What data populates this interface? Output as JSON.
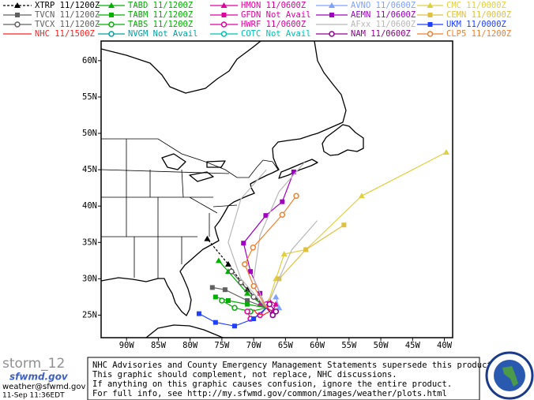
{
  "legend": [
    {
      "model": "XTRP",
      "run": "11/1200Z",
      "color": "#000000",
      "marker": "triangle",
      "line_style": "dashed",
      "tracks": [
        {
          "lon": [
            -68,
            -71,
            -74,
            -77.3
          ],
          "lat": [
            26,
            28.5,
            32,
            35.5
          ]
        }
      ]
    },
    {
      "model": "TABD",
      "run": "11/1200Z",
      "color": "#00b000",
      "marker": "triangle",
      "tracks": [
        {
          "lon": [
            -68,
            -71,
            -74,
            -75.5
          ],
          "lat": [
            26,
            28,
            31,
            32.5
          ]
        }
      ]
    },
    {
      "model": "HMON",
      "run": "11/0600Z",
      "color": "#e000a0",
      "marker": "triangle",
      "tracks": [
        {
          "lon": [
            -68,
            -67,
            -66.5,
            -67.5,
            -69
          ],
          "lat": [
            26,
            25.5,
            26.5,
            27,
            26.5
          ]
        }
      ]
    },
    {
      "model": "AVNO",
      "run": "11/0600Z",
      "color": "#80a0ff",
      "marker": "triangle",
      "tracks": [
        {
          "lon": [
            -68,
            -67,
            -66,
            -66.5
          ],
          "lat": [
            26,
            25,
            26,
            27.5
          ]
        }
      ]
    },
    {
      "model": "CMC",
      "run": "11/0000Z",
      "color": "#e0d040",
      "marker": "triangle",
      "tracks": [
        {
          "lon": [
            -68,
            -66.5,
            -65.2,
            -61.8,
            -53,
            -39.7
          ],
          "lat": [
            26,
            30,
            33.4,
            34,
            41.4,
            47.4
          ]
        }
      ]
    },
    {
      "model": "TVCN",
      "run": "11/1200Z",
      "color": "#606060",
      "marker": "square",
      "tracks": [
        {
          "lon": [
            -68,
            -71,
            -74.5,
            -76.5
          ],
          "lat": [
            26,
            27,
            28.5,
            28.8
          ]
        }
      ]
    },
    {
      "model": "TABM",
      "run": "11/1200Z",
      "color": "#00b000",
      "marker": "square",
      "tracks": [
        {
          "lon": [
            -68,
            -71,
            -74,
            -76
          ],
          "lat": [
            26,
            26.5,
            27,
            27.5
          ]
        }
      ]
    },
    {
      "model": "GFDN",
      "run": "Not Avail",
      "color": "#e000a0",
      "marker": "square",
      "tracks": []
    },
    {
      "model": "AEMN",
      "run": "11/0600Z",
      "color": "#a000c0",
      "marker": "square",
      "tracks": [
        {
          "lon": [
            -68,
            -69,
            -70.5,
            -71.6,
            -68.1,
            -65.5,
            -63.7
          ],
          "lat": [
            26,
            28,
            31,
            34.9,
            38.7,
            40.6,
            44.7
          ]
        }
      ]
    },
    {
      "model": "CEMN",
      "run": "11/0000Z",
      "color": "#e0c040",
      "marker": "square",
      "tracks": [
        {
          "lon": [
            -68,
            -66,
            -61.8,
            -55.8
          ],
          "lat": [
            26,
            30,
            34,
            37.4
          ]
        }
      ]
    },
    {
      "model": "TVCX",
      "run": "11/1200Z",
      "color": "#606060",
      "marker": "circle",
      "tracks": [
        {
          "lon": [
            -68,
            -70,
            -72,
            -73.5
          ],
          "lat": [
            26,
            27.5,
            29.5,
            31
          ]
        }
      ]
    },
    {
      "model": "TABS",
      "run": "11/1200Z",
      "color": "#00b000",
      "marker": "circle",
      "tracks": [
        {
          "lon": [
            -68,
            -70.5,
            -73,
            -75
          ],
          "lat": [
            26,
            25.5,
            26,
            27
          ]
        }
      ]
    },
    {
      "model": "HWRF",
      "run": "11/0600Z",
      "color": "#e000a0",
      "marker": "circle",
      "tracks": [
        {
          "lon": [
            -68,
            -69,
            -70.5,
            -71
          ],
          "lat": [
            26,
            25,
            24.5,
            25.5
          ]
        }
      ]
    },
    {
      "model": "AFxx",
      "run": "11/0600Z",
      "color": "#b8b8b8",
      "marker": "none",
      "tracks": [
        {
          "lon": [
            -68,
            -70,
            -69,
            -66,
            -62
          ],
          "lat": [
            26,
            30,
            36,
            42,
            46
          ]
        },
        {
          "lon": [
            -68,
            -72,
            -74,
            -72,
            -68
          ],
          "lat": [
            26,
            30,
            35,
            41,
            45
          ]
        },
        {
          "lon": [
            -68,
            -66,
            -64,
            -60
          ],
          "lat": [
            26,
            30,
            34,
            38
          ]
        }
      ]
    },
    {
      "model": "UKM",
      "run": "11/0000Z",
      "color": "#2040ff",
      "marker": "square",
      "tracks": [
        {
          "lon": [
            -68,
            -70,
            -73,
            -76,
            -78.6
          ],
          "lat": [
            26,
            24.5,
            23.5,
            24,
            25.2
          ]
        }
      ]
    },
    {
      "model": "NHC",
      "run": "11/1500Z",
      "color": "#ff2020",
      "marker": "none",
      "tracks": [
        {
          "lon": [
            -68,
            -67.5,
            -68.5,
            -69.5,
            -70
          ],
          "lat": [
            26.5,
            25.5,
            25,
            25.2,
            25.8
          ]
        }
      ]
    },
    {
      "model": "NVGM",
      "run": "Not Avail",
      "color": "#00a0a0",
      "marker": "circle",
      "tracks": []
    },
    {
      "model": "COTC",
      "run": "Not Avail",
      "color": "#00c0b0",
      "marker": "circle",
      "tracks": []
    },
    {
      "model": "NAM",
      "run": "11/0600Z",
      "color": "#900090",
      "marker": "circle",
      "tracks": [
        {
          "lon": [
            -68,
            -67,
            -66.5,
            -67.5
          ],
          "lat": [
            26,
            25,
            25.5,
            26.5
          ]
        }
      ]
    },
    {
      "model": "CLP5",
      "run": "11/1200Z",
      "color": "#f08030",
      "marker": "circle",
      "tracks": [
        {
          "lon": [
            -68,
            -70,
            -71.4,
            -70.1,
            -65.5,
            -63.3
          ],
          "lat": [
            26,
            29,
            32,
            34.3,
            38.8,
            41.4
          ]
        }
      ]
    }
  ],
  "map": {
    "lon_range": [
      -94,
      -38.7
    ],
    "lat_range": [
      21.9,
      62.7
    ],
    "lat_ticks": [
      {
        "value": 60,
        "label": "60N"
      },
      {
        "value": 55,
        "label": "55N"
      },
      {
        "value": 50,
        "label": "50N"
      },
      {
        "value": 45,
        "label": "45N"
      },
      {
        "value": 40,
        "label": "40N"
      },
      {
        "value": 35,
        "label": "35N"
      },
      {
        "value": 30,
        "label": "30N"
      },
      {
        "value": 25,
        "label": "25N"
      }
    ],
    "lon_ticks": [
      {
        "value": -90,
        "label": "90W"
      },
      {
        "value": -85,
        "label": "85W"
      },
      {
        "value": -80,
        "label": "80W"
      },
      {
        "value": -75,
        "label": "75W"
      },
      {
        "value": -70,
        "label": "70W"
      },
      {
        "value": -65,
        "label": "65W"
      },
      {
        "value": -60,
        "label": "60W"
      },
      {
        "value": -55,
        "label": "55W"
      },
      {
        "value": -50,
        "label": "50W"
      },
      {
        "value": -45,
        "label": "45W"
      },
      {
        "value": -40,
        "label": "40W"
      }
    ]
  },
  "footer": {
    "logo_text": "storm_12",
    "logo_site": "sfwmd.gov",
    "email": "weather@sfwmd.gov",
    "timestamp": "11-Sep 11:36EDT"
  },
  "disclaimer": {
    "lines": [
      "NHC Advisories and County Emergency Management Statements supersede this product.",
      "This graphic should complement, not replace, NHC discussions.",
      "If anything on this graphic causes confusion, ignore the entire product.",
      "For full info, see  http://my.sfwmd.gov/common/images/weather/plots.html"
    ]
  }
}
